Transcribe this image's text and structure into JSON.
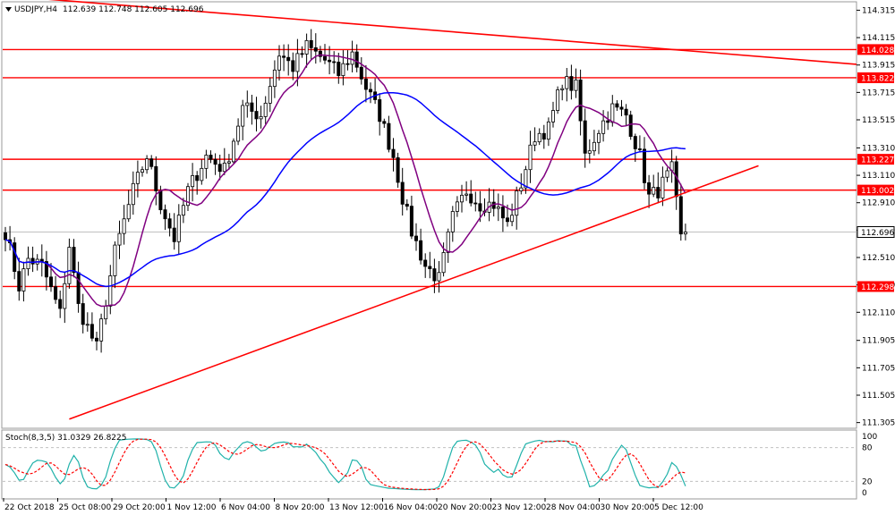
{
  "chart_data": [
    {
      "type": "candlestick",
      "symbol": "USDJPY,H4",
      "ohlc_label": "112.639 112.748 112.605 112.696",
      "y_ticks": [
        "114.315",
        "114.115",
        "113.915",
        "113.715",
        "113.515",
        "113.310",
        "113.110",
        "112.910",
        "112.710",
        "112.510",
        "112.310",
        "112.110",
        "111.905",
        "111.705",
        "111.505",
        "111.305"
      ],
      "ylim": [
        111.27,
        114.37
      ],
      "x_ticks": [
        "22 Oct 2018",
        "25 Oct 08:00",
        "29 Oct 20:00",
        "1 Nov 12:00",
        "6 Nov 04:00",
        "8 Nov 20:00",
        "13 Nov 12:00",
        "16 Nov 04:00",
        "20 Nov 20:00",
        "23 Nov 12:00",
        "28 Nov 04:00",
        "30 Nov 20:00",
        "5 Dec 12:00"
      ],
      "bar_count": 150,
      "levels": [
        {
          "label": "114.028",
          "value": 114.028,
          "color": "#ff0000"
        },
        {
          "label": "113.822",
          "value": 113.822,
          "color": "#ff0000"
        },
        {
          "label": "113.227",
          "value": 113.227,
          "color": "#ff0000"
        },
        {
          "label": "113.002",
          "value": 113.002,
          "color": "#ff0000"
        },
        {
          "label": "112.298",
          "value": 112.298,
          "color": "#ff0000"
        }
      ],
      "current_price": {
        "label": "112.696",
        "value": 112.696
      },
      "trendlines": [
        {
          "name": "descending",
          "color": "#ff0000",
          "points": [
            [
              0,
              114.42
            ],
            [
              190,
              113.92
            ]
          ]
        },
        {
          "name": "ascending",
          "color": "#ff0000",
          "points": [
            [
              14,
              111.33
            ],
            [
              165,
              113.18
            ]
          ]
        }
      ],
      "anchors": [
        [
          0,
          112.7
        ],
        [
          3,
          112.3
        ],
        [
          5,
          112.5
        ],
        [
          8,
          112.45
        ],
        [
          12,
          112.1
        ],
        [
          14,
          112.6
        ],
        [
          16,
          112.15
        ],
        [
          20,
          111.85
        ],
        [
          24,
          112.55
        ],
        [
          28,
          113.0
        ],
        [
          31,
          113.25
        ],
        [
          34,
          112.9
        ],
        [
          37,
          112.65
        ],
        [
          40,
          113.0
        ],
        [
          44,
          113.25
        ],
        [
          48,
          113.15
        ],
        [
          52,
          113.6
        ],
        [
          56,
          113.55
        ],
        [
          60,
          114.0
        ],
        [
          63,
          113.9
        ],
        [
          66,
          114.05
        ],
        [
          70,
          113.95
        ],
        [
          73,
          113.85
        ],
        [
          76,
          114.0
        ],
        [
          79,
          113.75
        ],
        [
          82,
          113.55
        ],
        [
          85,
          113.25
        ],
        [
          87,
          112.95
        ],
        [
          89,
          112.7
        ],
        [
          92,
          112.45
        ],
        [
          95,
          112.35
        ],
        [
          98,
          112.8
        ],
        [
          101,
          113.0
        ],
        [
          104,
          112.9
        ],
        [
          107,
          112.9
        ],
        [
          110,
          112.75
        ],
        [
          113,
          113.05
        ],
        [
          116,
          113.4
        ],
        [
          119,
          113.45
        ],
        [
          122,
          113.8
        ],
        [
          125,
          113.75
        ],
        [
          127,
          113.25
        ],
        [
          130,
          113.45
        ],
        [
          133,
          113.6
        ],
        [
          136,
          113.55
        ],
        [
          139,
          113.25
        ],
        [
          141,
          112.95
        ],
        [
          143,
          113.0
        ],
        [
          146,
          113.15
        ],
        [
          148,
          112.65
        ],
        [
          150,
          112.7
        ]
      ],
      "colors": {
        "bull": "#000000",
        "bear": "#000000",
        "ma_fast": "#800080",
        "ma_slow": "#0000ff",
        "level": "#ff0000",
        "grid": "#c0c0c0"
      },
      "ma": [
        {
          "name": "ma_fast",
          "color": "#800080",
          "start": 0,
          "end": 152,
          "period": 10
        },
        {
          "name": "ma_slow",
          "color": "#0000ff",
          "start": 0,
          "end": 152,
          "period": 40
        }
      ]
    },
    {
      "type": "line",
      "label": "Stoch(8,3,5) 31.0329 26.8225",
      "y_ticks": [
        "100",
        "80",
        "20",
        "0"
      ],
      "ylim": [
        0,
        100
      ],
      "levels": [
        80,
        20
      ],
      "series": [
        {
          "color": "#20b2aa",
          "style": "solid"
        },
        {
          "color": "#ff0000",
          "style": "dashed"
        }
      ]
    }
  ]
}
